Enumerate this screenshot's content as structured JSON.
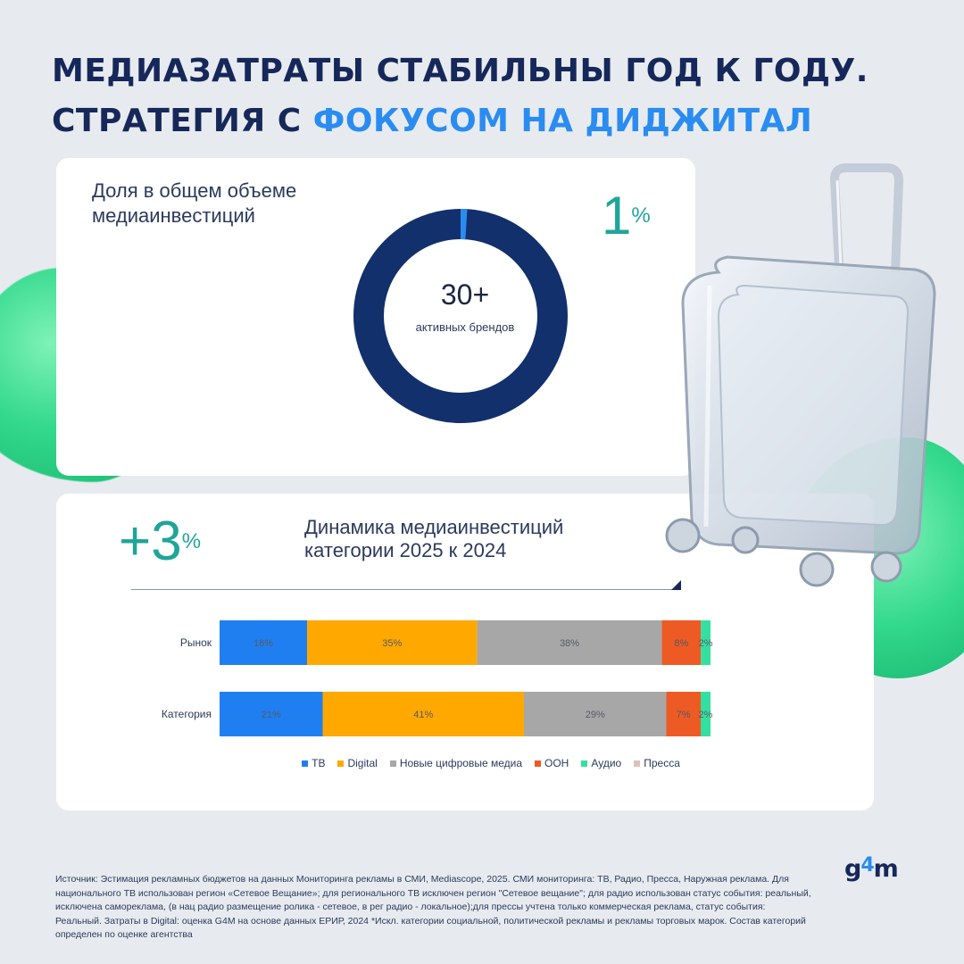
{
  "headline": {
    "line1": "МЕДИАЗАТРАТЫ СТАБИЛЬНЫ ГОД К ГОДУ.",
    "line2_prefix": "СТРАТЕГИЯ С ",
    "line2_accent": "ФОКУСОМ НА ДИДЖИТАЛ"
  },
  "share_block": {
    "label": "Доля в общем объеме медиаинвестиций",
    "value": "1",
    "unit": "%",
    "donut_value_pct": 1,
    "donut_center_value": "30+",
    "donut_center_caption": "активных брендов"
  },
  "dynamics_block": {
    "value": "+3",
    "unit": "%",
    "label": "Динамика медиаинвестиций категории 2025 к 2024"
  },
  "chart_data": {
    "type": "bar",
    "orientation": "horizontal",
    "stacked": true,
    "normalized": true,
    "categories": [
      "Рынок",
      "Категория"
    ],
    "series": [
      {
        "name": "ТВ",
        "color": "#1f7ff0",
        "values": [
          18,
          21
        ],
        "labels": [
          "18%",
          "21%"
        ]
      },
      {
        "name": "Digital",
        "color": "#ffa800",
        "values": [
          35,
          41
        ],
        "labels": [
          "35%",
          "41%"
        ]
      },
      {
        "name": "Новые цифровые медиа",
        "color": "#a7a7a7",
        "values": [
          38,
          29
        ],
        "labels": [
          "38%",
          "29%"
        ]
      },
      {
        "name": "OOH",
        "color": "#ee5a24",
        "values": [
          8,
          7
        ],
        "labels": [
          "8%",
          "7%"
        ]
      },
      {
        "name": "Аудио",
        "color": "#33e0a1",
        "values": [
          2,
          2
        ],
        "labels": [
          "2%",
          "2%"
        ]
      },
      {
        "name": "Пресса",
        "color": "#d9c3b8",
        "values": [
          0,
          0
        ],
        "labels": [
          "",
          ""
        ]
      }
    ],
    "legend_position": "bottom"
  },
  "source_text": "Источник: Эстимация рекламных бюджетов на данных Мониторинга рекламы в СМИ, Mediascope, 2025. СМИ мониторинга: ТВ, Радио, Пресса, Наружная реклама. Для национального ТВ использован регион «Сетевое Вещание»; для регионального ТВ исключен регион \"Сетевое вещание\"; для радио использован статус события: реальный, исключена самореклама, (в нац радио размещение ролика - сетевое, в рег радио - локальное);для прессы учтена только коммерческая реклама, статус события: Реальный. Затраты в Digital: оценка G4M на основе данных ЕРИР, 2024 *Искл. категории социальной, политической рекламы и рекламы торговых марок. Состав категорий определен по оценке агентства",
  "logo": {
    "g": "g",
    "four": "4",
    "m": "m"
  }
}
